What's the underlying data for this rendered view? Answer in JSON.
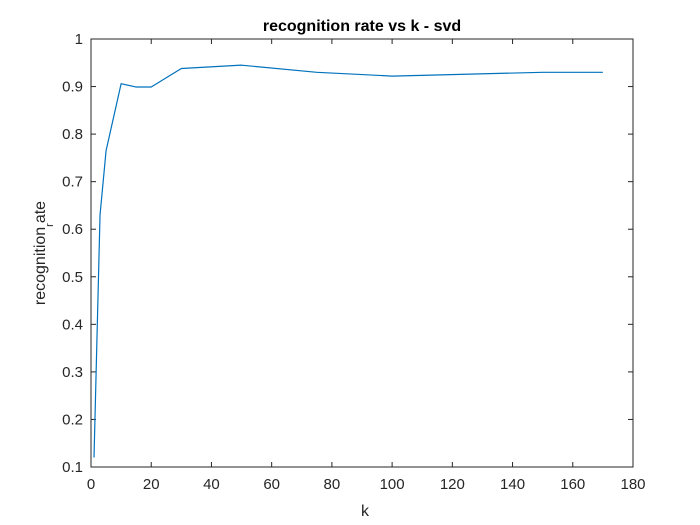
{
  "chart_data": {
    "type": "line",
    "title": "recognition rate vs k - svd",
    "xlabel": "k",
    "ylabel_main": "recognition",
    "ylabel_sub": "r",
    "ylabel_tail": "ate",
    "xlim": [
      0,
      180
    ],
    "ylim": [
      0.1,
      1
    ],
    "xticks": [
      0,
      20,
      40,
      60,
      80,
      100,
      120,
      140,
      160,
      180
    ],
    "yticks": [
      0.1,
      0.2,
      0.3,
      0.4,
      0.5,
      0.6,
      0.7,
      0.8,
      0.9,
      1
    ],
    "xtick_labels": [
      "0",
      "20",
      "40",
      "60",
      "80",
      "100",
      "120",
      "140",
      "160",
      "180"
    ],
    "ytick_labels": [
      "0.1",
      "0.2",
      "0.3",
      "0.4",
      "0.5",
      "0.6",
      "0.7",
      "0.8",
      "0.9",
      "1"
    ],
    "grid": false,
    "series": [
      {
        "color": "#0072bd",
        "x": [
          1,
          3,
          5,
          10,
          15,
          20,
          30,
          50,
          75,
          100,
          150,
          170
        ],
        "y": [
          0.12,
          0.63,
          0.765,
          0.906,
          0.899,
          0.899,
          0.938,
          0.945,
          0.93,
          0.922,
          0.93,
          0.93
        ]
      }
    ]
  }
}
